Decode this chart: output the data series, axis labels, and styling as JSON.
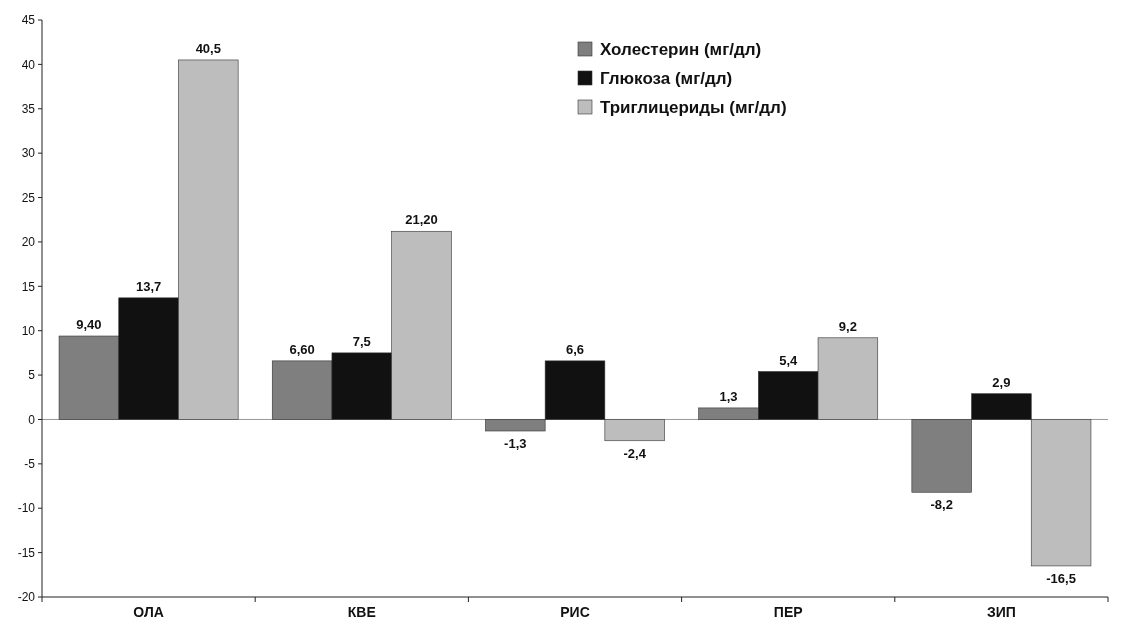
{
  "chart_data": {
    "type": "bar",
    "categories": [
      "ОЛА",
      "КВЕ",
      "РИС",
      "ПЕР",
      "ЗИП"
    ],
    "series": [
      {
        "name": "Холестерин (мг/дл)",
        "color": "#7f7f7f",
        "values": [
          9.4,
          6.6,
          -1.3,
          1.3,
          -8.2
        ],
        "value_labels": [
          "9,40",
          "6,60",
          "-1,3",
          "1,3",
          "-8,2"
        ]
      },
      {
        "name": "Глюкоза (мг/дл)",
        "color": "#111111",
        "values": [
          13.7,
          7.5,
          6.6,
          5.4,
          2.9
        ],
        "value_labels": [
          "13,7",
          "7,5",
          "6,6",
          "5,4",
          "2,9"
        ]
      },
      {
        "name": "Триглицериды (мг/дл)",
        "color": "#bdbdbd",
        "values": [
          40.5,
          21.2,
          -2.4,
          9.2,
          -16.5
        ],
        "value_labels": [
          "40,5",
          "21,20",
          "-2,4",
          "9,2",
          "-16,5"
        ]
      }
    ],
    "ylim": [
      -20,
      45
    ],
    "yticks": [
      -20,
      -15,
      -10,
      -5,
      0,
      5,
      10,
      15,
      20,
      25,
      30,
      35,
      40,
      45
    ],
    "ref_lines": [
      {
        "axis": "y",
        "value": 0,
        "color": "#999999"
      }
    ],
    "grid": false,
    "legend": "top right"
  }
}
